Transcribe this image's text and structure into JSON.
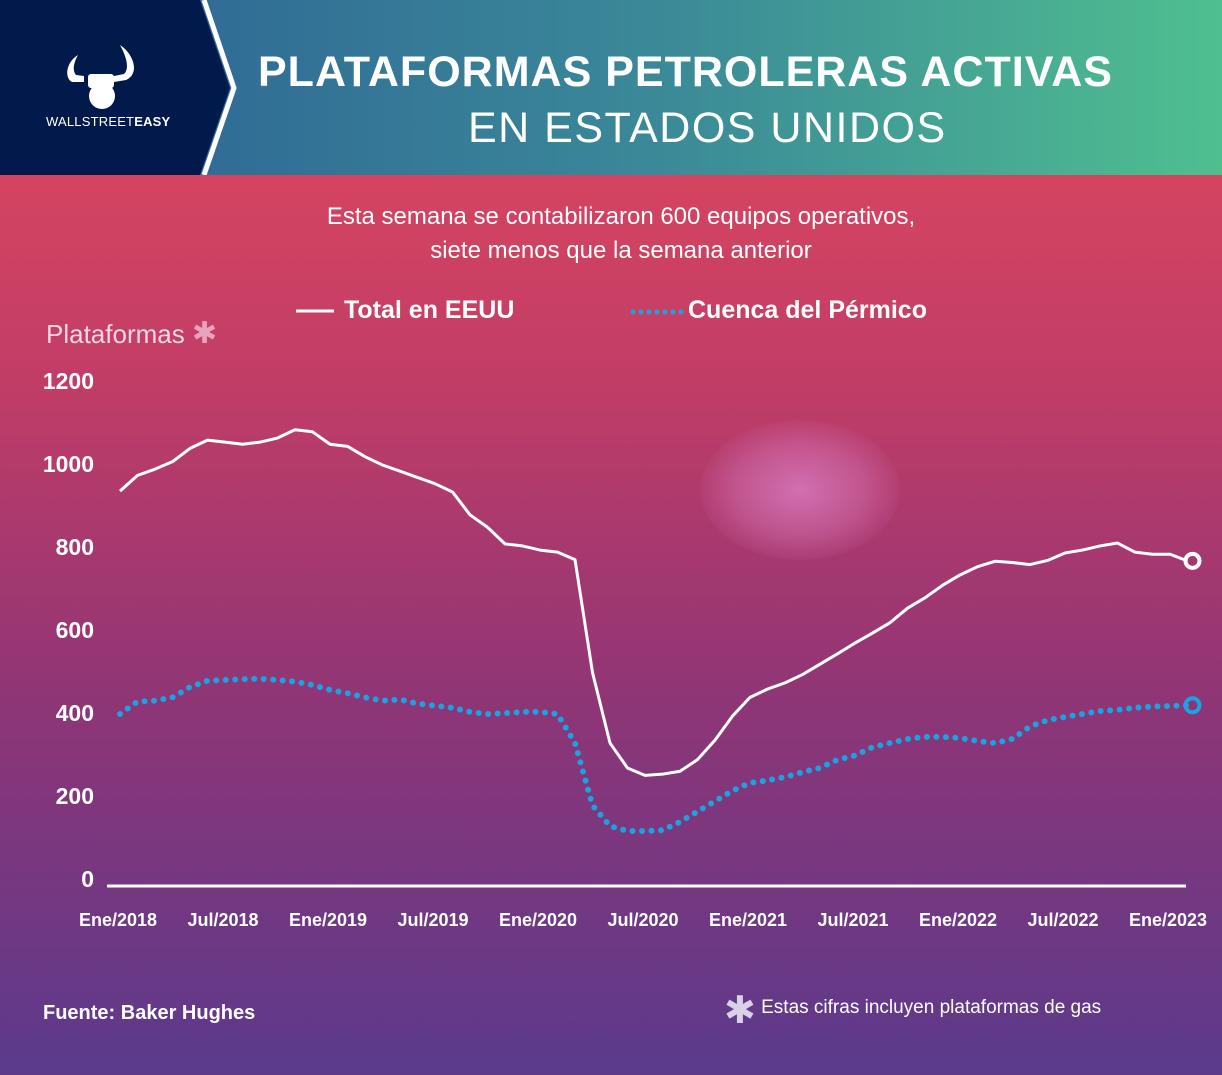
{
  "header": {
    "brand_light": "WALLSTREET",
    "brand_bold": "EASY",
    "title_line1": "PLATAFORMAS PETROLERAS ACTIVAS",
    "title_line2": "EN ESTADOS UNIDOS"
  },
  "subtitle_line1": "Esta semana se contabilizaron 600 equipos operativos,",
  "subtitle_line2": "siete menos que la semana anterior",
  "footer": {
    "source": "Fuente: Baker Hughes",
    "note_symbol": "✱",
    "note": "Estas cifras incluyen plataformas de gas"
  },
  "colors": {
    "total": "#ffffff",
    "permian": "#1aa3e0",
    "header_left": "#011a4b"
  },
  "chart_data": {
    "type": "line",
    "ylabel": "Plataformas",
    "ylabel_symbol": "✱",
    "ylim": [
      0,
      1200
    ],
    "yticks": [
      "0",
      "200",
      "400",
      "600",
      "800",
      "1000",
      "1200"
    ],
    "xticks": [
      "Ene/2018",
      "Jul/2018",
      "Ene/2019",
      "Jul/2019",
      "Ene/2020",
      "Jul/2020",
      "Ene/2021",
      "Jul/2021",
      "Ene/2022",
      "Jul/2022",
      "Ene/2023"
    ],
    "x_start": "Ene/2018",
    "x_step": "month",
    "legend_position": "top-center",
    "series": [
      {
        "name": "Total en EEUU",
        "style": "solid",
        "values": [
          937,
          975,
          990,
          1008,
          1040,
          1060,
          1055,
          1050,
          1055,
          1065,
          1085,
          1080,
          1050,
          1045,
          1020,
          1000,
          985,
          970,
          955,
          935,
          880,
          850,
          810,
          805,
          795,
          790,
          772,
          500,
          330,
          270,
          252,
          255,
          262,
          290,
          337,
          395,
          440,
          460,
          475,
          495,
          520,
          545,
          571,
          595,
          620,
          655,
          680,
          710,
          735,
          755,
          768,
          765,
          760,
          770,
          788,
          795,
          805,
          812,
          790,
          785,
          785,
          769
        ]
      },
      {
        "name": "Cuenca del Pérmico",
        "style": "dotted",
        "values": [
          400,
          430,
          432,
          440,
          465,
          480,
          482,
          484,
          485,
          482,
          478,
          470,
          458,
          450,
          440,
          432,
          435,
          425,
          420,
          415,
          405,
          400,
          402,
          405,
          405,
          400,
          330,
          180,
          130,
          118,
          118,
          120,
          140,
          165,
          190,
          215,
          234,
          240,
          248,
          260,
          270,
          290,
          300,
          320,
          330,
          340,
          345,
          345,
          342,
          335,
          330,
          340,
          370,
          385,
          393,
          400,
          407,
          410,
          415,
          418,
          419,
          421
        ]
      }
    ]
  }
}
